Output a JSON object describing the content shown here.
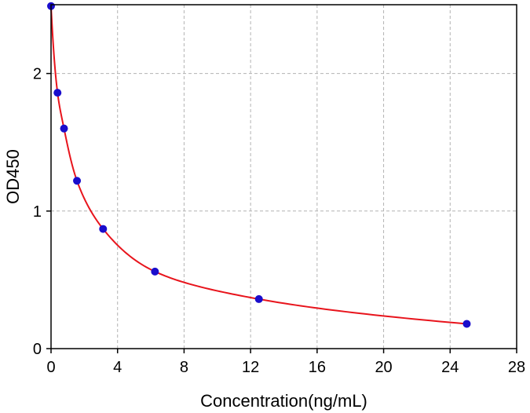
{
  "chart_data": {
    "type": "scatter",
    "title": "",
    "xlabel": "Concentration(ng/mL)",
    "ylabel": "OD450",
    "xlim": [
      0,
      28
    ],
    "ylim": [
      0,
      2.5
    ],
    "x_ticks": [
      0,
      4,
      8,
      12,
      16,
      20,
      24,
      28
    ],
    "y_ticks": [
      0,
      1,
      2
    ],
    "grid": true,
    "legend": "none",
    "series": [
      {
        "points": [
          {
            "x": 0,
            "y": 2.49
          },
          {
            "x": 0.39,
            "y": 1.86
          },
          {
            "x": 0.78,
            "y": 1.6
          },
          {
            "x": 1.56,
            "y": 1.22
          },
          {
            "x": 3.13,
            "y": 0.87
          },
          {
            "x": 6.25,
            "y": 0.56
          },
          {
            "x": 12.5,
            "y": 0.36
          },
          {
            "x": 25,
            "y": 0.18
          }
        ],
        "marker_color": "#1a0dcc",
        "fit_color": "#e8141c",
        "fit": "smooth-curve"
      }
    ]
  }
}
